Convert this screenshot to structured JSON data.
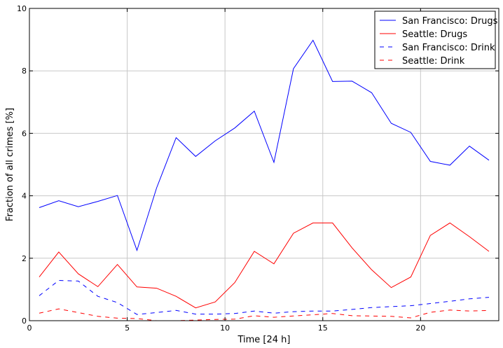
{
  "chart_data": {
    "type": "line",
    "title": "",
    "xlabel": "Time [24 h]",
    "ylabel": "Fraction of all crimes [%]",
    "xlim": [
      0,
      24
    ],
    "ylim": [
      0,
      10
    ],
    "grid": true,
    "legend_position": "top-right",
    "xticks": [
      0,
      5,
      10,
      15,
      20
    ],
    "yticks": [
      0,
      2,
      4,
      6,
      8,
      10
    ],
    "xtick_labels": [
      "0",
      "5",
      "10",
      "15",
      "20"
    ],
    "ytick_labels": [
      "0",
      "2",
      "4",
      "6",
      "8",
      "10"
    ],
    "x": [
      0.5,
      1.5,
      2.5,
      3.5,
      4.5,
      5.5,
      6.5,
      7.5,
      8.5,
      9.5,
      10.5,
      11.5,
      12.5,
      13.5,
      14.5,
      15.5,
      16.5,
      17.5,
      18.5,
      19.5,
      20.5,
      21.5,
      22.5,
      23.5
    ],
    "series": [
      {
        "name": "San Francisco: Drugs",
        "color": "#0000ff",
        "style": "solid",
        "values": [
          3.62,
          3.84,
          3.65,
          3.82,
          4.01,
          2.25,
          4.25,
          5.86,
          5.26,
          5.76,
          6.17,
          6.71,
          5.07,
          8.07,
          8.98,
          7.66,
          7.67,
          7.3,
          6.32,
          6.03,
          5.1,
          4.98,
          5.59,
          5.14
        ]
      },
      {
        "name": "Seattle: Drugs",
        "color": "#ff0000",
        "style": "solid",
        "values": [
          1.4,
          2.2,
          1.5,
          1.09,
          1.8,
          1.08,
          1.04,
          0.78,
          0.41,
          0.6,
          1.22,
          2.22,
          1.82,
          2.8,
          3.13,
          3.13,
          2.33,
          1.63,
          1.06,
          1.4,
          2.73,
          3.13,
          2.69,
          2.22
        ]
      },
      {
        "name": "San Francisco: Drink",
        "color": "#0000ff",
        "style": "dashed",
        "values": [
          0.8,
          1.29,
          1.27,
          0.78,
          0.58,
          0.2,
          0.26,
          0.33,
          0.21,
          0.21,
          0.23,
          0.31,
          0.24,
          0.29,
          0.31,
          0.31,
          0.36,
          0.42,
          0.45,
          0.48,
          0.55,
          0.62,
          0.7,
          0.75
        ]
      },
      {
        "name": "Seattle: Drink",
        "color": "#ff0000",
        "style": "dashed",
        "values": [
          0.24,
          0.38,
          0.26,
          0.14,
          0.08,
          0.07,
          0.0,
          0.0,
          0.02,
          0.04,
          0.05,
          0.16,
          0.11,
          0.15,
          0.19,
          0.23,
          0.16,
          0.15,
          0.14,
          0.09,
          0.27,
          0.34,
          0.31,
          0.33
        ]
      }
    ]
  }
}
